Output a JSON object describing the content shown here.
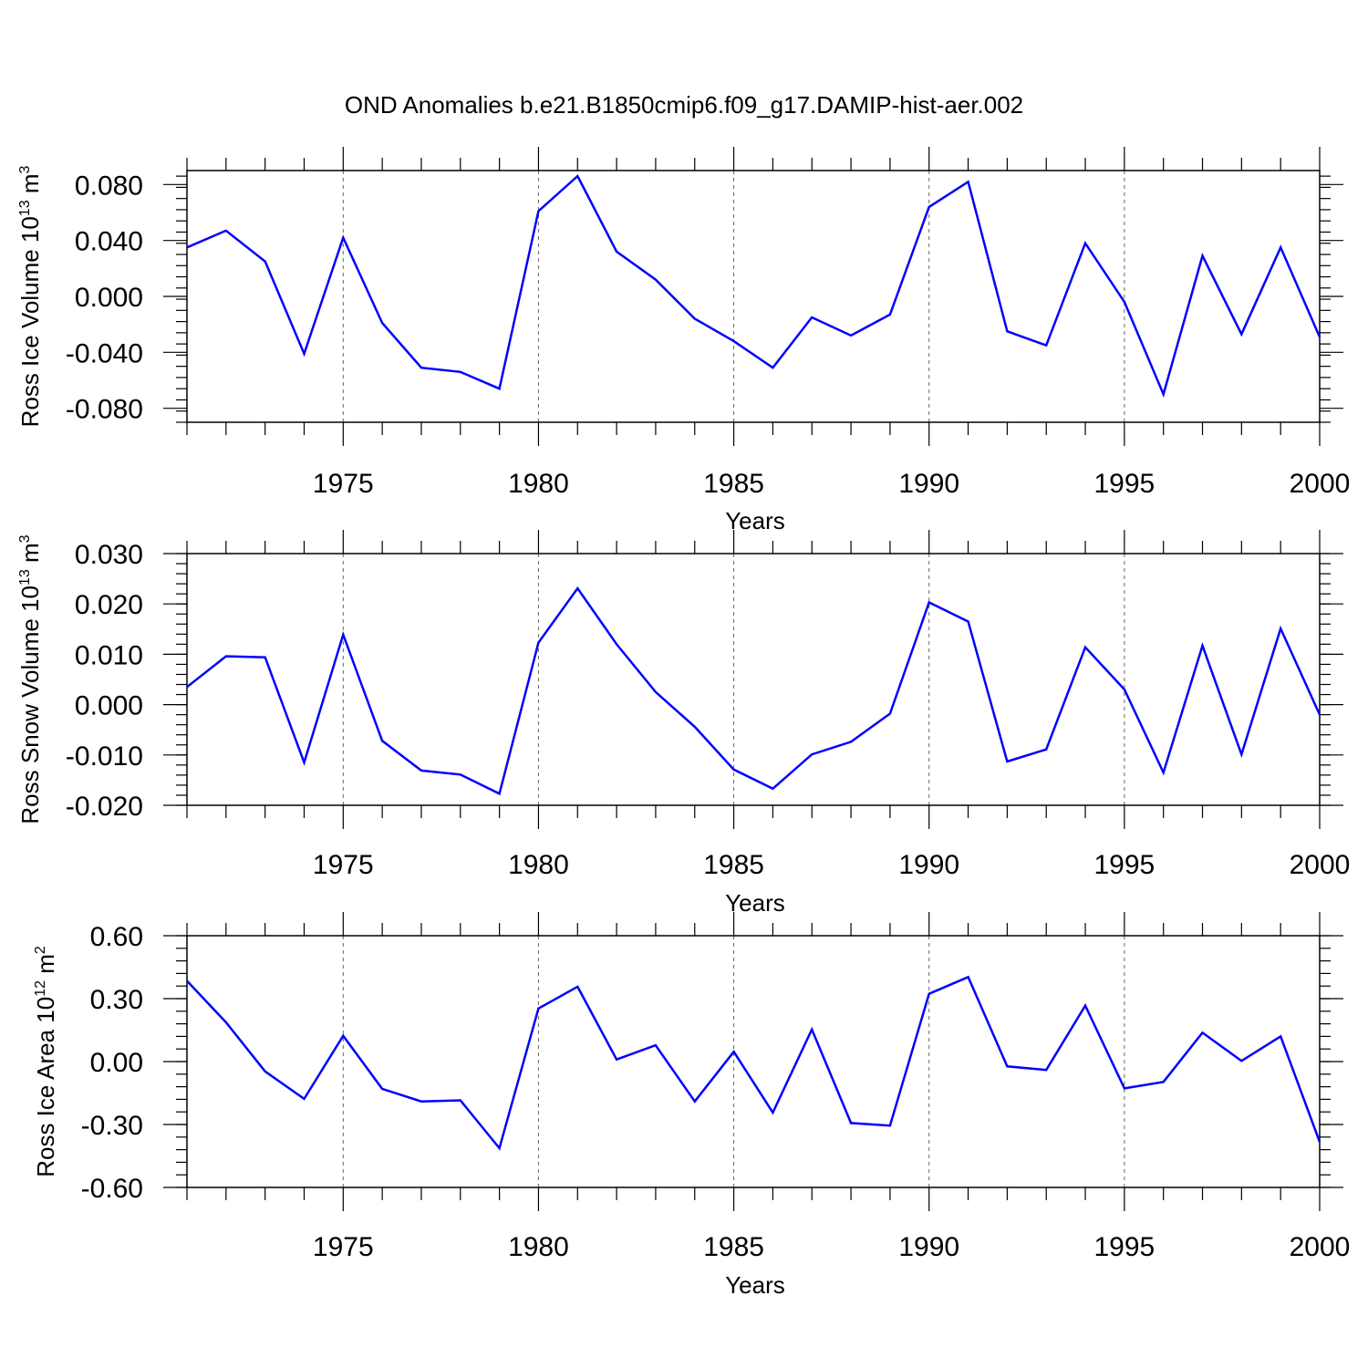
{
  "title": "OND Anomalies b.e21.B1850cmip6.f09_g17.DAMIP-hist-aer.002",
  "colors": {
    "series": "#0000ff",
    "frame": "#000000",
    "grid": "#666666"
  },
  "chart_data": [
    {
      "type": "line",
      "ylabel": "Ross Ice Volume",
      "yunit_base": "10",
      "yunit_exp": "13",
      "yunit_tail": "m",
      "yunit_tail_exp": "3",
      "xlabel": "Years",
      "xlim": [
        1971,
        2000
      ],
      "ylim": [
        -0.09,
        0.09
      ],
      "x_ticks": [
        1975,
        1980,
        1985,
        1990,
        1995,
        2000
      ],
      "x_tick_labels": [
        "1975",
        "1980",
        "1985",
        "1990",
        "1995",
        "2000"
      ],
      "y_ticks": [
        0.08,
        0.04,
        0.0,
        -0.04,
        -0.08
      ],
      "y_tick_labels": [
        "0.080",
        "0.040",
        "0.000",
        "-0.040",
        "-0.080"
      ],
      "grid": "vertical dashed at major x ticks",
      "series": [
        {
          "x": [
            1971,
            1972,
            1973,
            1974,
            1975,
            1976,
            1977,
            1978,
            1979,
            1980,
            1981,
            1982,
            1983,
            1984,
            1985,
            1986,
            1987,
            1988,
            1989,
            1990,
            1991,
            1992,
            1993,
            1994,
            1995,
            1996,
            1997,
            1998,
            1999,
            2000
          ],
          "values": [
            0.035,
            0.047,
            0.025,
            -0.041,
            0.042,
            -0.019,
            -0.051,
            -0.054,
            -0.066,
            0.061,
            0.086,
            0.032,
            0.012,
            -0.016,
            -0.032,
            -0.051,
            -0.015,
            -0.028,
            -0.013,
            0.064,
            0.082,
            -0.025,
            -0.035,
            0.038,
            -0.004,
            -0.07,
            0.029,
            -0.027,
            0.035,
            -0.029
          ]
        }
      ]
    },
    {
      "type": "line",
      "ylabel": "Ross Snow Volume",
      "yunit_base": "10",
      "yunit_exp": "13",
      "yunit_tail": "m",
      "yunit_tail_exp": "3",
      "xlabel": "Years",
      "xlim": [
        1971,
        2000
      ],
      "ylim": [
        -0.02,
        0.03
      ],
      "x_ticks": [
        1975,
        1980,
        1985,
        1990,
        1995,
        2000
      ],
      "x_tick_labels": [
        "1975",
        "1980",
        "1985",
        "1990",
        "1995",
        "2000"
      ],
      "y_ticks": [
        0.03,
        0.02,
        0.01,
        0.0,
        -0.01,
        -0.02
      ],
      "y_tick_labels": [
        "0.030",
        "0.020",
        "0.010",
        "0.000",
        "-0.010",
        "-0.020"
      ],
      "grid": "vertical dashed at major x ticks",
      "series": [
        {
          "x": [
            1971,
            1972,
            1973,
            1974,
            1975,
            1976,
            1977,
            1978,
            1979,
            1980,
            1981,
            1982,
            1983,
            1984,
            1985,
            1986,
            1987,
            1988,
            1989,
            1990,
            1991,
            1992,
            1993,
            1994,
            1995,
            1996,
            1997,
            1998,
            1999,
            2000
          ],
          "values": [
            0.0035,
            0.0096,
            0.0094,
            -0.0115,
            0.0139,
            -0.0072,
            -0.0131,
            -0.0139,
            -0.0177,
            0.0123,
            0.0231,
            0.012,
            0.0025,
            -0.0044,
            -0.0129,
            -0.0167,
            -0.0099,
            -0.0074,
            -0.0018,
            0.0203,
            0.0165,
            -0.0113,
            -0.0089,
            0.0114,
            0.003,
            -0.0135,
            0.0117,
            -0.0099,
            0.0151,
            -0.002
          ]
        }
      ]
    },
    {
      "type": "line",
      "ylabel": "Ross Ice Area",
      "yunit_base": "10",
      "yunit_exp": "12",
      "yunit_tail": "m",
      "yunit_tail_exp": "2",
      "xlabel": "Years",
      "xlim": [
        1971,
        2000
      ],
      "ylim": [
        -0.6,
        0.6
      ],
      "x_ticks": [
        1975,
        1980,
        1985,
        1990,
        1995,
        2000
      ],
      "x_tick_labels": [
        "1975",
        "1980",
        "1985",
        "1990",
        "1995",
        "2000"
      ],
      "y_ticks": [
        0.6,
        0.3,
        0.0,
        -0.3,
        -0.6
      ],
      "y_tick_labels": [
        "0.60",
        "0.30",
        "0.00",
        "-0.30",
        "-0.60"
      ],
      "grid": "vertical dashed at major x ticks",
      "series": [
        {
          "x": [
            1971,
            1972,
            1973,
            1974,
            1975,
            1976,
            1977,
            1978,
            1979,
            1980,
            1981,
            1982,
            1983,
            1984,
            1985,
            1986,
            1987,
            1988,
            1989,
            1990,
            1991,
            1992,
            1993,
            1994,
            1995,
            1996,
            1997,
            1998,
            1999,
            2000
          ],
          "values": [
            0.385,
            0.187,
            -0.047,
            -0.178,
            0.123,
            -0.13,
            -0.19,
            -0.185,
            -0.413,
            0.253,
            0.357,
            0.01,
            0.078,
            -0.19,
            0.047,
            -0.243,
            0.153,
            -0.293,
            -0.305,
            0.323,
            0.403,
            -0.023,
            -0.04,
            0.267,
            -0.128,
            -0.097,
            0.138,
            0.003,
            0.12,
            -0.383
          ]
        }
      ]
    }
  ]
}
